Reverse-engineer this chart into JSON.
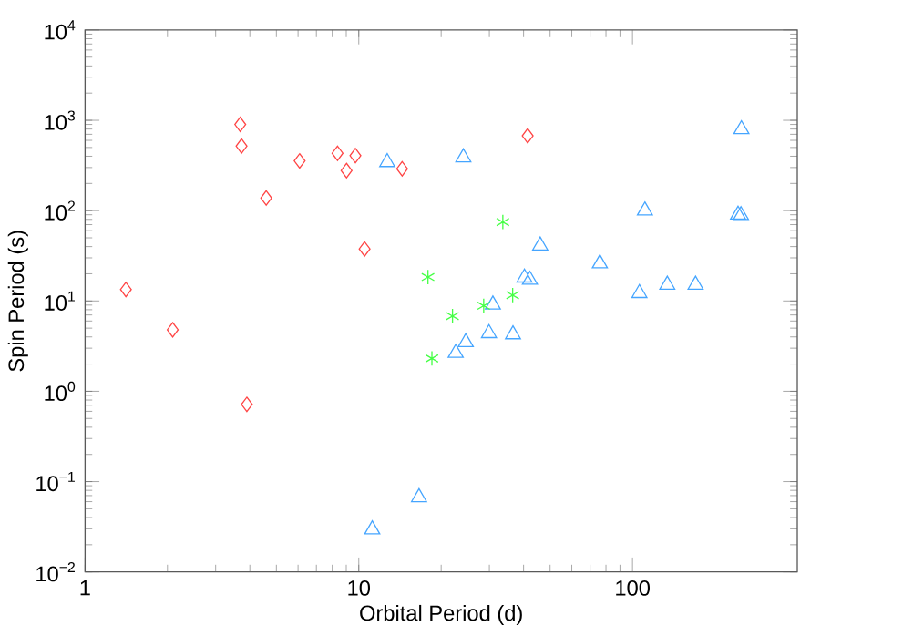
{
  "chart_data": {
    "type": "scatter",
    "xlabel": "Orbital Period (d)",
    "ylabel": "Spin Period (s)",
    "log": "xy",
    "grid": false,
    "xlim": [
      1,
      400
    ],
    "ylim": [
      0.01,
      10000
    ],
    "xticks": [
      1,
      10,
      100
    ],
    "yticks": [
      {
        "value": 0.01,
        "label": "10$^{−2}$"
      },
      {
        "value": 0.1,
        "label": "10$^{−1}$"
      },
      {
        "value": 1,
        "label": "10$^{0}$"
      },
      {
        "value": 10,
        "label": "10$^{1}$"
      },
      {
        "value": 100,
        "label": "10$^{2}$"
      },
      {
        "value": 1000,
        "label": "10$^{3}$"
      },
      {
        "value": 10000,
        "label": "10$^{4}$"
      }
    ],
    "series": [
      {
        "color": "#ff4545",
        "marker": "diamond",
        "x": [
          1.41,
          2.09,
          3.69,
          3.73,
          3.9,
          4.59,
          6.08,
          8.36,
          9.72,
          9.02,
          10.5,
          14.4,
          41.4
        ],
        "values": [
          13.4,
          4.8,
          900,
          518,
          0.715,
          138,
          355,
          432,
          406,
          278,
          37.7,
          291,
          673
        ]
      },
      {
        "color": "#45a5ff",
        "marker": "triangle",
        "x": [
          12.7,
          24.1,
          11.2,
          16.6,
          250,
          111,
          243,
          249,
          46,
          76,
          40.3,
          42.2,
          106,
          134,
          170,
          30.9,
          29.9,
          36.6,
          24.6,
          22.6
        ],
        "values": [
          344,
          388,
          0.0295,
          0.067,
          794,
          100,
          90,
          89,
          41,
          26,
          18.1,
          17.1,
          12.2,
          15.1,
          15.1,
          9.1,
          4.39,
          4.26,
          3.49,
          2.65
        ]
      },
      {
        "color": "#45ff45",
        "marker": "cross",
        "x": [
          17.9,
          33.6,
          22.0,
          28.6,
          36.5,
          18.5
        ],
        "values": [
          18.4,
          74.8,
          6.8,
          8.85,
          11.6,
          2.31
        ]
      }
    ]
  }
}
